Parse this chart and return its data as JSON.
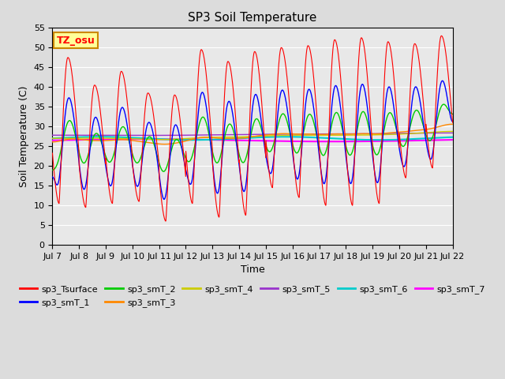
{
  "title": "SP3 Soil Temperature",
  "xlabel": "Time",
  "ylabel": "Soil Temperature (C)",
  "ylim": [
    0,
    55
  ],
  "yticks": [
    0,
    5,
    10,
    15,
    20,
    25,
    30,
    35,
    40,
    45,
    50,
    55
  ],
  "xtick_labels": [
    "Jul 7",
    "Jul 8",
    "Jul 9",
    "Jul 10",
    "Jul 11",
    "Jul 12",
    "Jul 13",
    "Jul 14",
    "Jul 15",
    "Jul 16",
    "Jul 17",
    "Jul 18",
    "Jul 19",
    "Jul 20",
    "Jul 21",
    "Jul 22"
  ],
  "series_colors": {
    "sp3_Tsurface": "#FF0000",
    "sp3_smT_1": "#0000FF",
    "sp3_smT_2": "#00CC00",
    "sp3_smT_3": "#FF8800",
    "sp3_smT_4": "#CCCC00",
    "sp3_smT_5": "#9933CC",
    "sp3_smT_6": "#00CCCC",
    "sp3_smT_7": "#FF00FF"
  },
  "annotation_text": "TZ_osu",
  "annotation_color": "#FF0000",
  "annotation_bg": "#FFFF99",
  "annotation_border": "#CC8800",
  "bg_color": "#E8E8E8",
  "grid_color": "#FFFFFF",
  "title_fontsize": 11,
  "label_fontsize": 9,
  "tick_fontsize": 8,
  "n_points_per_day": 144,
  "n_days": 15,
  "surface_peaks": [
    47.5,
    40.5,
    44.0,
    38.5,
    38.0,
    49.5,
    46.5,
    49.0,
    50.0,
    50.5,
    52.0,
    52.5,
    51.5,
    51.0,
    53.0
  ],
  "surface_mins": [
    10.5,
    9.5,
    10.5,
    11.0,
    6.0,
    10.5,
    7.0,
    7.5,
    14.5,
    12.0,
    10.0,
    10.0,
    10.5,
    17.0,
    19.5
  ],
  "smT1_base": 27.0,
  "smT1_scale": 0.75,
  "smT2_base": 27.0,
  "smT2_scale": 0.6,
  "smT3_base": 27.5,
  "smT3_scale": 0.3,
  "smT4_base": 27.5,
  "smT4_scale": 0.15,
  "smT5_base": 28.0,
  "smT5_scale": 0.06,
  "smT6_base": 27.0,
  "smT6_amp": 0.4,
  "smT7_base": 26.5,
  "smT7_amp": 0.3
}
